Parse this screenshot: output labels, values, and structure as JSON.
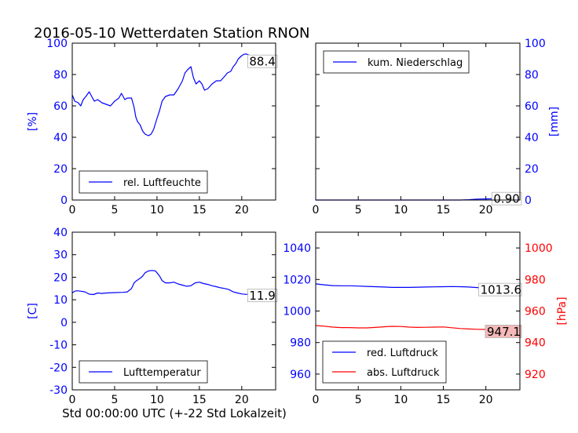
{
  "title": "2016-05-10 Wetterdaten Station RNON",
  "xlabel": "Std 00:00:00 UTC (+-22 Std Lokalzeit)",
  "colors": {
    "blue": "#0000ff",
    "red": "#ff0000",
    "tag_red": "#f4b8b8"
  },
  "chart_data": [
    {
      "type": "line",
      "ylabel": "[%]",
      "ylim": [
        0,
        100
      ],
      "xlim": [
        0,
        24
      ],
      "xticks": [
        0,
        5,
        10,
        15,
        20
      ],
      "yticks": [
        0,
        20,
        40,
        60,
        80,
        100
      ],
      "legend_loc": "lower-left",
      "annotation": "88.4",
      "series": [
        {
          "name": "rel. Luftfeuchte",
          "color": "#0000ff",
          "x": [
            0,
            0.3,
            0.7,
            1.0,
            1.3,
            1.6,
            2.0,
            2.3,
            2.6,
            3.0,
            3.5,
            4.0,
            4.5,
            5.0,
            5.5,
            5.8,
            6.0,
            6.2,
            6.5,
            7.0,
            7.3,
            7.5,
            7.7,
            8.0,
            8.3,
            8.6,
            9.0,
            9.3,
            9.6,
            10.0,
            10.3,
            10.6,
            11.0,
            11.5,
            12.0,
            12.5,
            13.0,
            13.3,
            13.6,
            14.0,
            14.3,
            14.6,
            15.0,
            15.3,
            15.6,
            16.0,
            16.5,
            17.0,
            17.5,
            18.0,
            18.3,
            18.7,
            19.0,
            19.3,
            19.6,
            20.0,
            20.3,
            20.6,
            21.0,
            21.5,
            22.0,
            22.5,
            23.0,
            23.5,
            24.0
          ],
          "values": [
            67,
            63,
            62,
            60,
            64,
            66,
            69,
            66,
            63,
            64,
            62,
            61,
            60,
            63,
            65,
            68,
            66,
            64,
            65,
            65,
            59,
            53,
            50,
            48,
            44,
            42,
            41,
            42,
            45,
            52,
            57,
            63,
            66,
            67,
            67,
            71,
            76,
            81,
            83,
            85,
            78,
            74,
            76,
            74,
            70,
            71,
            74,
            76,
            76,
            79,
            81,
            82,
            85,
            87,
            90,
            92,
            93,
            93,
            92,
            90,
            89,
            88.5,
            88.4,
            88.4,
            88.4
          ]
        }
      ]
    },
    {
      "type": "line",
      "ylabel": "[mm]",
      "ylim": [
        0,
        100
      ],
      "xlim": [
        0,
        24
      ],
      "xticks": [
        0,
        5,
        10,
        15,
        20
      ],
      "yticks": [
        0,
        20,
        40,
        60,
        80,
        100
      ],
      "legend_loc": "upper-left",
      "annotation": "0.90",
      "series": [
        {
          "name": "kum. Niederschlag",
          "color": "#0000ff",
          "x": [
            0,
            17.0,
            18.0,
            18.5,
            19.0,
            20.0,
            21.0,
            22.0,
            23.0,
            24.0
          ],
          "values": [
            0,
            0,
            0.2,
            0.4,
            0.6,
            0.7,
            0.8,
            0.85,
            0.9,
            0.9
          ]
        }
      ]
    },
    {
      "type": "line",
      "ylabel": "[C]",
      "ylim": [
        -30,
        40
      ],
      "xlim": [
        0,
        24
      ],
      "xticks": [
        0,
        5,
        10,
        15,
        20
      ],
      "yticks": [
        -30,
        -20,
        -10,
        0,
        10,
        20,
        30,
        40
      ],
      "legend_loc": "lower-left",
      "annotation": "11.9",
      "series": [
        {
          "name": "Lufttemperatur",
          "color": "#0000ff",
          "x": [
            0,
            0.3,
            0.6,
            1.0,
            1.5,
            2.0,
            2.5,
            3.0,
            3.5,
            4.0,
            5.0,
            6.0,
            6.5,
            7.0,
            7.3,
            7.6,
            8.0,
            8.3,
            8.6,
            9.0,
            9.4,
            9.8,
            10.0,
            10.3,
            10.6,
            11.0,
            11.5,
            12.0,
            12.5,
            13.0,
            13.5,
            14.0,
            14.5,
            15.0,
            15.5,
            16.0,
            16.5,
            17.0,
            17.5,
            18.0,
            18.5,
            19.0,
            19.5,
            20.0,
            20.5,
            21.0,
            22.0,
            23.0,
            24.0
          ],
          "values": [
            13,
            13.8,
            14,
            13.8,
            13.5,
            12.5,
            12.3,
            13,
            12.8,
            13,
            13.2,
            13.3,
            13.5,
            15,
            17.5,
            18.5,
            19.5,
            20.5,
            22,
            22.8,
            23,
            22.8,
            22,
            20.5,
            18.5,
            17.5,
            17.5,
            17.8,
            17,
            16.5,
            16,
            16.2,
            17.5,
            17.8,
            17.2,
            16.8,
            16.2,
            15.8,
            15.3,
            15,
            14.5,
            13.5,
            13,
            12.6,
            12.4,
            12.5,
            12.2,
            12,
            11.9
          ]
        }
      ]
    },
    {
      "type": "line",
      "ylim_left": [
        950,
        1050
      ],
      "ylim_right": [
        910,
        1010
      ],
      "ylabel_right": "[hPa]",
      "xlim": [
        0,
        24
      ],
      "xticks": [
        0,
        5,
        10,
        15,
        20
      ],
      "yticks_left": [
        960,
        980,
        1000,
        1020,
        1040
      ],
      "yticks_right": [
        920,
        940,
        960,
        980,
        1000
      ],
      "legend_loc": "lower-left",
      "annotation_left": "1013.6",
      "annotation_right": "947.1",
      "series": [
        {
          "name": "red. Luftdruck",
          "color": "#0000ff",
          "axis": "left",
          "x": [
            0,
            1,
            2,
            3,
            4,
            5,
            6,
            7,
            8,
            9,
            10,
            11,
            12,
            13,
            14,
            15,
            16,
            17,
            18,
            19,
            20,
            21,
            22,
            23,
            24
          ],
          "values": [
            1017.2,
            1016.6,
            1016.1,
            1016.0,
            1016.0,
            1015.8,
            1015.6,
            1015.4,
            1015.2,
            1015.0,
            1015.0,
            1015.0,
            1015.1,
            1015.2,
            1015.3,
            1015.4,
            1015.5,
            1015.4,
            1015.2,
            1014.9,
            1014.6,
            1014.2,
            1014.0,
            1013.8,
            1013.6
          ]
        },
        {
          "name": "abs. Luftdruck",
          "color": "#ff0000",
          "axis": "right",
          "x": [
            0,
            1,
            2,
            3,
            4,
            5,
            6,
            7,
            8,
            9,
            10,
            11,
            12,
            13,
            14,
            15,
            16,
            17,
            18,
            19,
            20,
            21,
            22,
            23,
            24
          ],
          "values": [
            950.8,
            950.4,
            949.8,
            949.5,
            949.5,
            949.3,
            949.3,
            949.6,
            950.0,
            950.3,
            950.2,
            949.8,
            949.6,
            949.7,
            949.8,
            949.9,
            949.4,
            948.9,
            948.6,
            948.4,
            948.3,
            948.0,
            947.7,
            947.4,
            947.1
          ]
        }
      ]
    }
  ]
}
